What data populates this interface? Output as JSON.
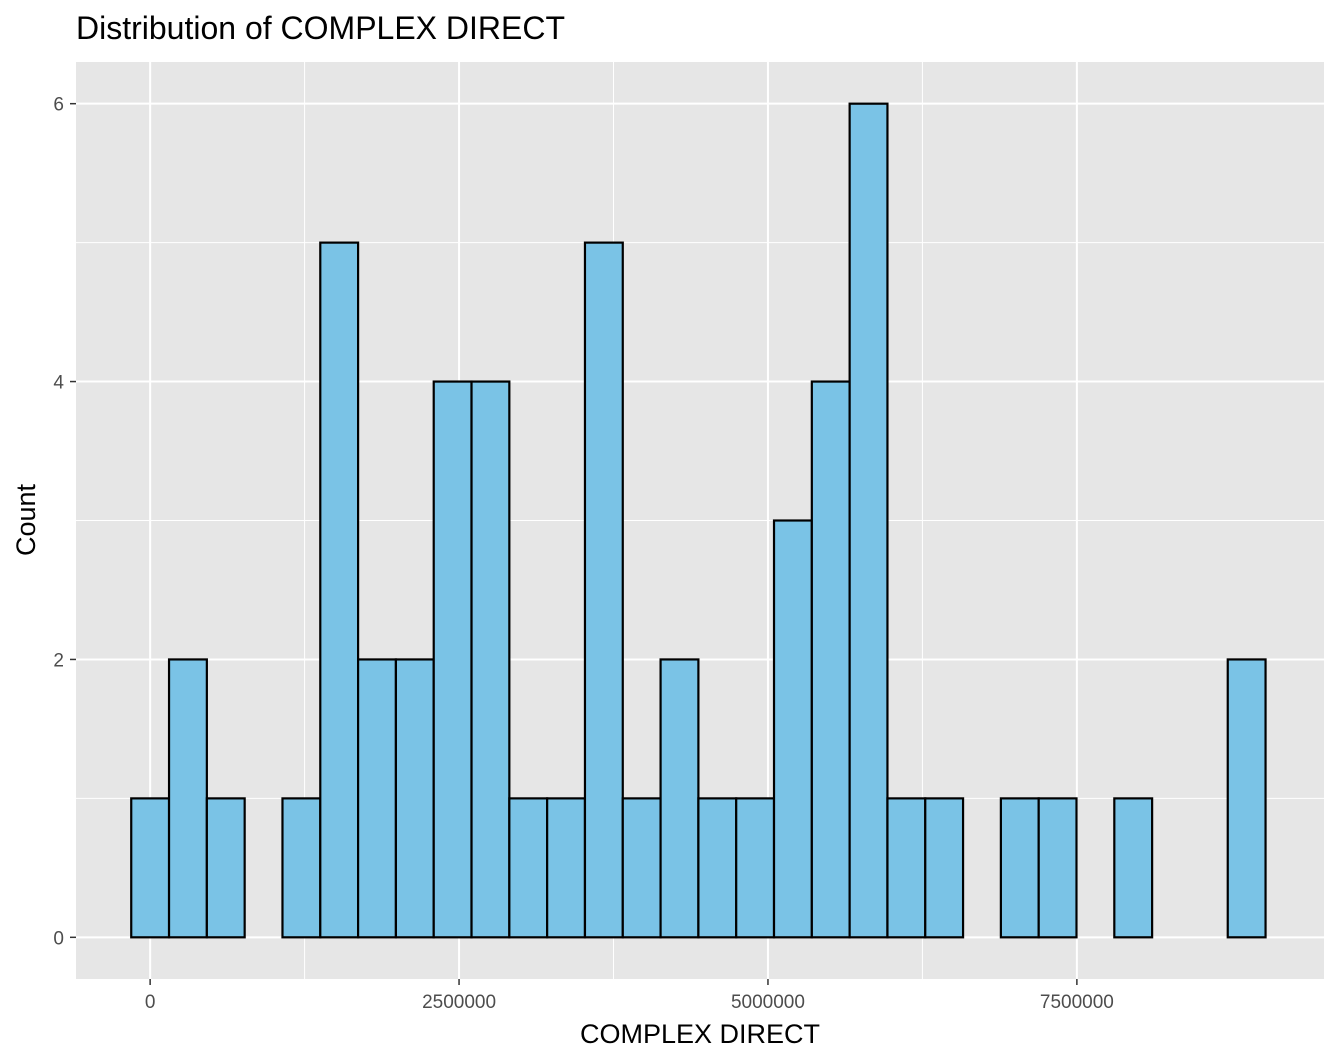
{
  "chart_data": {
    "type": "bar",
    "title": "Distribution of COMPLEX DIRECT",
    "xlabel": "COMPLEX DIRECT",
    "ylabel": "Count",
    "xlim": [
      -600000,
      9500000
    ],
    "ylim": [
      -0.3,
      6.3
    ],
    "x_ticks": [
      0,
      2500000,
      5000000,
      7500000
    ],
    "x_tick_labels": [
      "0",
      "2500000",
      "5000000",
      "7500000"
    ],
    "y_ticks": [
      0,
      2,
      4,
      6
    ],
    "y_tick_labels": [
      "0",
      "2",
      "4",
      "6"
    ],
    "bin_width": 306000,
    "bin_centers": [
      0,
      306000,
      612000,
      918000,
      1224000,
      1530000,
      1836000,
      2142000,
      2448000,
      2754000,
      3060000,
      3366000,
      3672000,
      3978000,
      4284000,
      4590000,
      4896000,
      5202000,
      5508000,
      5814000,
      6120000,
      6426000,
      6732000,
      7038000,
      7344000,
      7650000,
      7956000,
      8262000,
      8568000,
      8874000
    ],
    "counts": [
      1,
      2,
      1,
      0,
      1,
      5,
      2,
      2,
      4,
      4,
      1,
      1,
      5,
      1,
      2,
      1,
      1,
      3,
      4,
      6,
      1,
      1,
      0,
      1,
      1,
      0,
      1,
      0,
      0,
      2
    ],
    "grid": true,
    "legend": "none",
    "fill_color": "#7AC3E6",
    "edge_color": "#000000",
    "panel_color": "#E6E6E6",
    "grid_color": "#FFFFFF"
  }
}
